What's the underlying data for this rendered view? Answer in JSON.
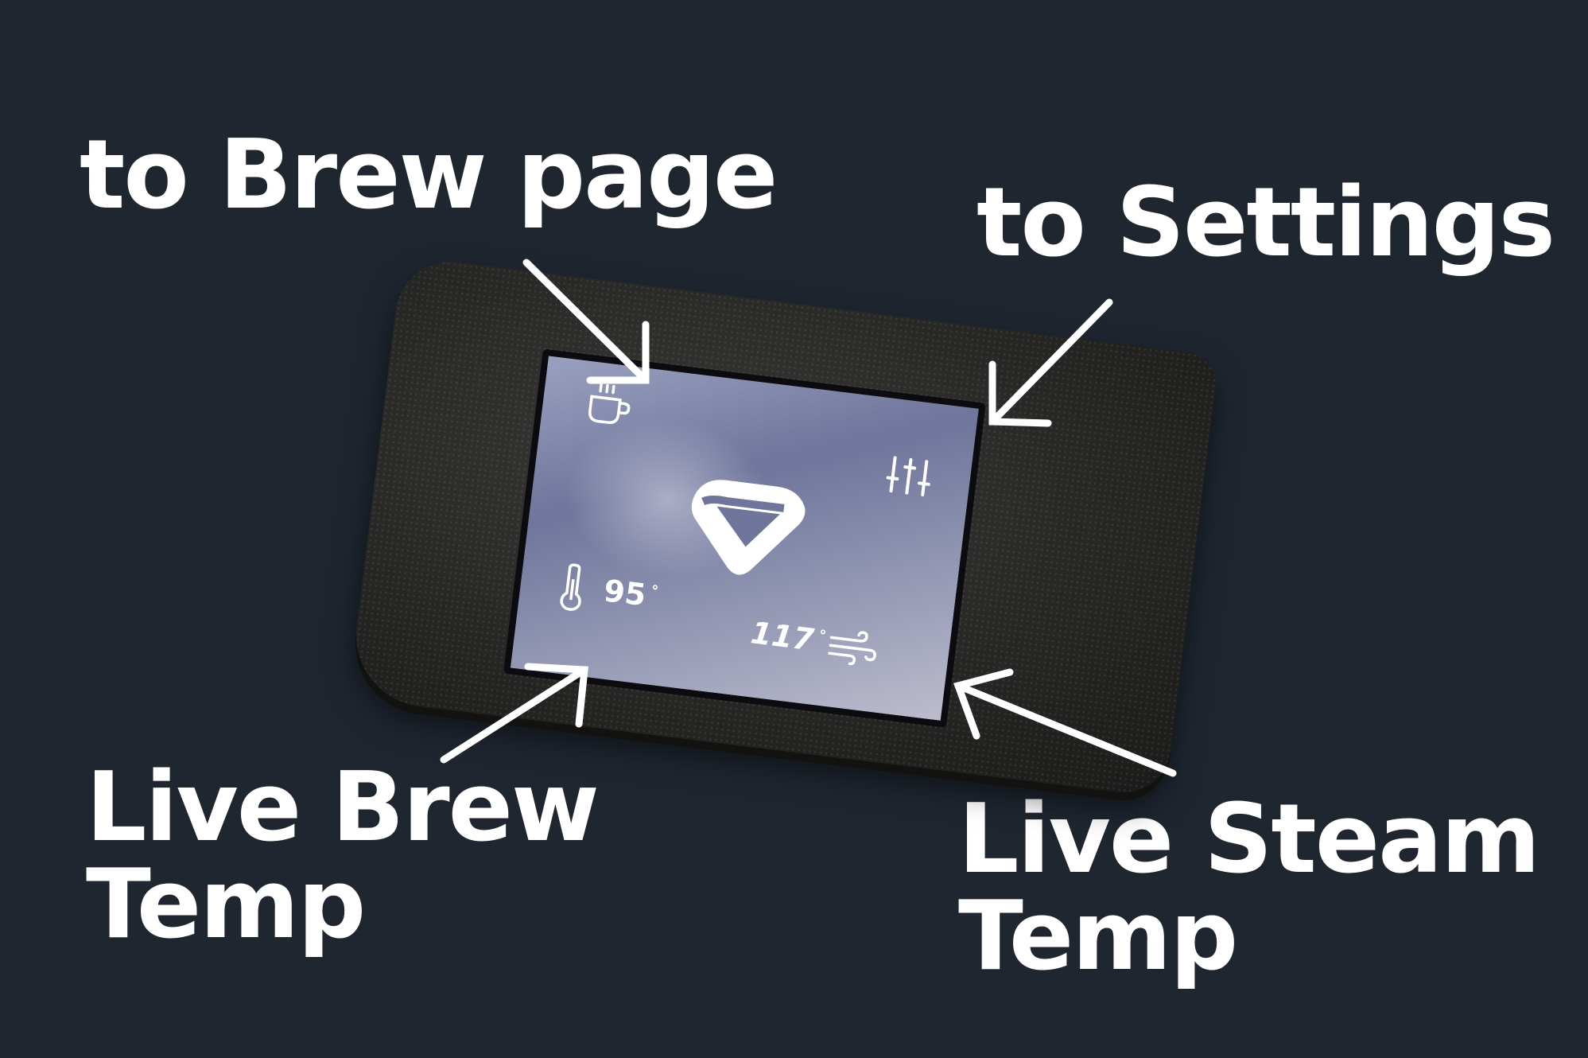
{
  "annotations": {
    "brew_page": "to Brew page",
    "settings": "to Settings",
    "brew_temp_line1": "Live Brew",
    "brew_temp_line2": "Temp",
    "steam_temp_line1": "Live Steam",
    "steam_temp_line2": "Temp"
  },
  "screen": {
    "brew_temp": "95",
    "steam_temp": "117",
    "degree_symbol": "°",
    "icons": [
      "coffee-cup-icon",
      "settings-sliders-icon",
      "logo-icon",
      "thermometer-icon",
      "wind-icon"
    ]
  },
  "colors": {
    "background": "#1f2630",
    "annotation_text": "#ffffff",
    "device_body": "#262624"
  }
}
